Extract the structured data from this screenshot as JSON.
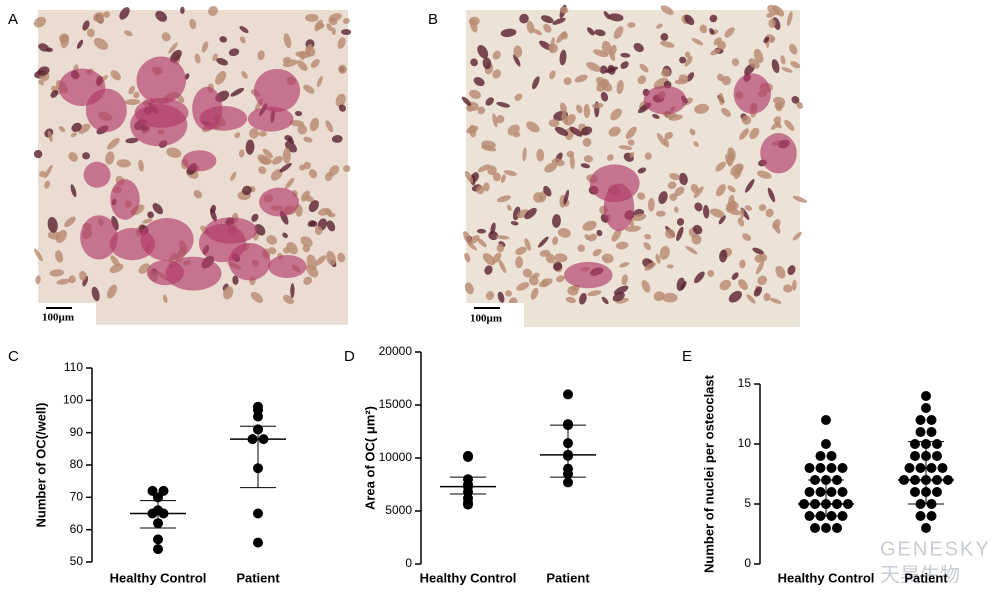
{
  "panels": [
    {
      "label": "A",
      "scale_bar": "100µm"
    },
    {
      "label": "B",
      "scale_bar": "100µm"
    }
  ],
  "watermark": [
    "GENESKY",
    "天昊生物"
  ],
  "chart_data": [
    {
      "type": "dot",
      "label": "C",
      "ylabel": "Number of OC(/well)",
      "categories": [
        "Healthy Control",
        "Patient"
      ],
      "groups": [
        {
          "values": [
            72,
            72,
            70,
            66,
            65,
            65,
            62,
            57,
            54
          ],
          "center": 65,
          "error": [
            60.5,
            69
          ]
        },
        {
          "values": [
            98,
            97,
            95,
            91,
            88,
            88,
            79,
            65,
            56
          ],
          "center": 88,
          "error": [
            73,
            92
          ]
        }
      ],
      "ylim": [
        50,
        110
      ],
      "yticks": [
        50,
        60,
        70,
        80,
        90,
        100,
        110
      ]
    },
    {
      "type": "dot",
      "label": "D",
      "ylabel": "Area of OC( μm²)",
      "categories": [
        "Healthy Control",
        "Patient"
      ],
      "groups": [
        {
          "values": [
            10200,
            10100,
            8000,
            7500,
            7400,
            7300,
            6800,
            6200,
            5800,
            5600
          ],
          "center": 7300,
          "error": [
            6600,
            8200
          ]
        },
        {
          "values": [
            16000,
            13200,
            13100,
            11400,
            10300,
            10200,
            9000,
            8500,
            7700
          ],
          "center": 10300,
          "error": [
            8200,
            13100
          ]
        }
      ],
      "ylim": [
        0,
        20000
      ],
      "yticks": [
        0,
        5000,
        10000,
        15000,
        20000
      ]
    },
    {
      "type": "dot",
      "label": "E",
      "ylabel": "Number of nuclei per osteoclast",
      "categories": [
        "Healthy Control",
        "Patient"
      ],
      "groups": [
        {
          "values": [
            12,
            10,
            9,
            9,
            8,
            8,
            8,
            8,
            7,
            7,
            7,
            6,
            6,
            6,
            6,
            5,
            5,
            5,
            5,
            5,
            4,
            4,
            4,
            4,
            3,
            3,
            3
          ],
          "center": 5,
          "error": [
            4,
            7
          ]
        },
        {
          "values": [
            14,
            13,
            12,
            12,
            11,
            11,
            10,
            10,
            10,
            9,
            9,
            9,
            8,
            8,
            8,
            8,
            7,
            7,
            7,
            7,
            7,
            6,
            6,
            6,
            5,
            5,
            4,
            4,
            3
          ],
          "center": 7,
          "error": [
            5,
            10.2
          ]
        }
      ],
      "ylim": [
        0,
        15
      ],
      "yticks": [
        0,
        5,
        10,
        15
      ]
    }
  ]
}
